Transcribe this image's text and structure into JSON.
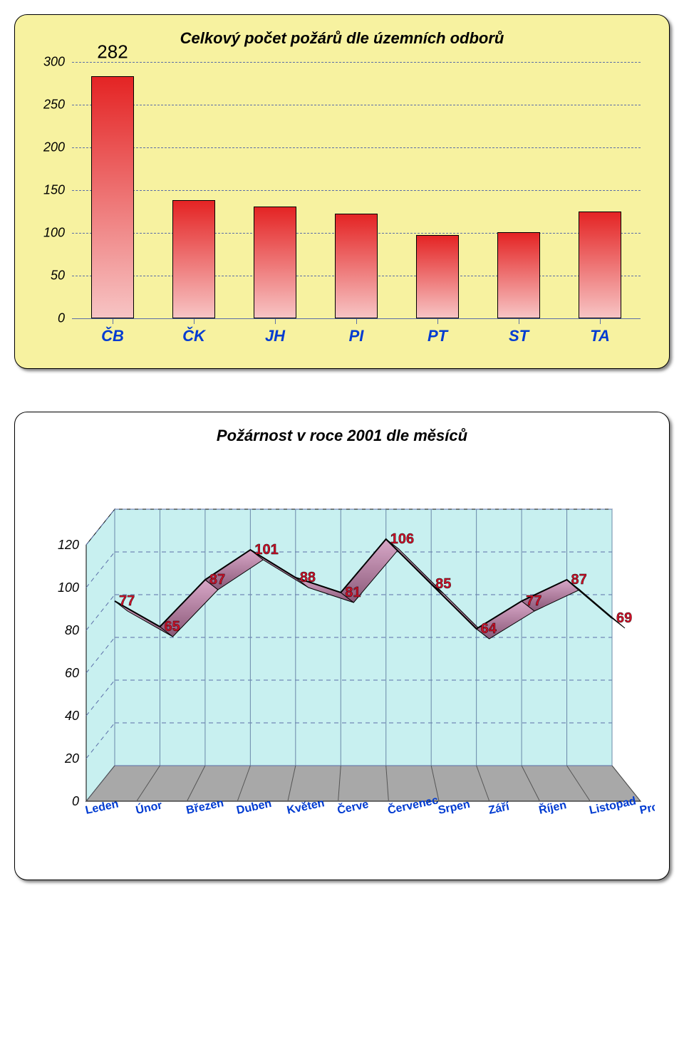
{
  "bar_chart": {
    "title": "Celkový počet požárů dle územních odborů",
    "type": "bar",
    "categories": [
      "ČB",
      "ČK",
      "JH",
      "PI",
      "PT",
      "ST",
      "TA"
    ],
    "values": [
      282,
      137,
      129,
      121,
      96,
      99,
      123
    ],
    "ylim": [
      0,
      300
    ],
    "ytick_step": 50,
    "bar_fill_top": "#e42424",
    "bar_fill_bottom": "#f7c4c4",
    "bar_border": "#000000",
    "background_color": "#f7f2a0",
    "grid_color": "#5b6ea8",
    "xlabel_color": "#003bd1",
    "ylabel_fontstyle": "italic",
    "ylabel_fontsize": 18,
    "value_fontsize": 26,
    "xlabel_fontsize": 22,
    "title_fontsize": 22,
    "card_border_radius": 18
  },
  "line_chart": {
    "title": "Požárnost v roce 2001 dle měsíců",
    "type": "line-3d",
    "categories": [
      "Leden",
      "Únor",
      "Březen",
      "Duben",
      "Květen",
      "Červe",
      "Červenec",
      "Srpen",
      "Září",
      "Říjen",
      "Listopad",
      "Prosinec"
    ],
    "values": [
      77,
      65,
      87,
      101,
      88,
      81,
      106,
      85,
      64,
      77,
      87,
      69
    ],
    "ylim": [
      0,
      120
    ],
    "ytick_step": 20,
    "line_fill_top": "#d8a8c8",
    "line_fill_bottom": "#8a5878",
    "line_stroke": "#000000",
    "wall_color": "#c8f0f0",
    "floor_color": "#a8a8a8",
    "grid_color": "#5b6ea8",
    "value_color": "#d01028",
    "value_fontsize": 20,
    "xlabel_color": "#003bd1",
    "xlabel_fontsize": 16,
    "ylabel_fontsize": 18,
    "title_fontsize": 22,
    "background_color": "#ffffff",
    "card_border_radius": 18
  }
}
